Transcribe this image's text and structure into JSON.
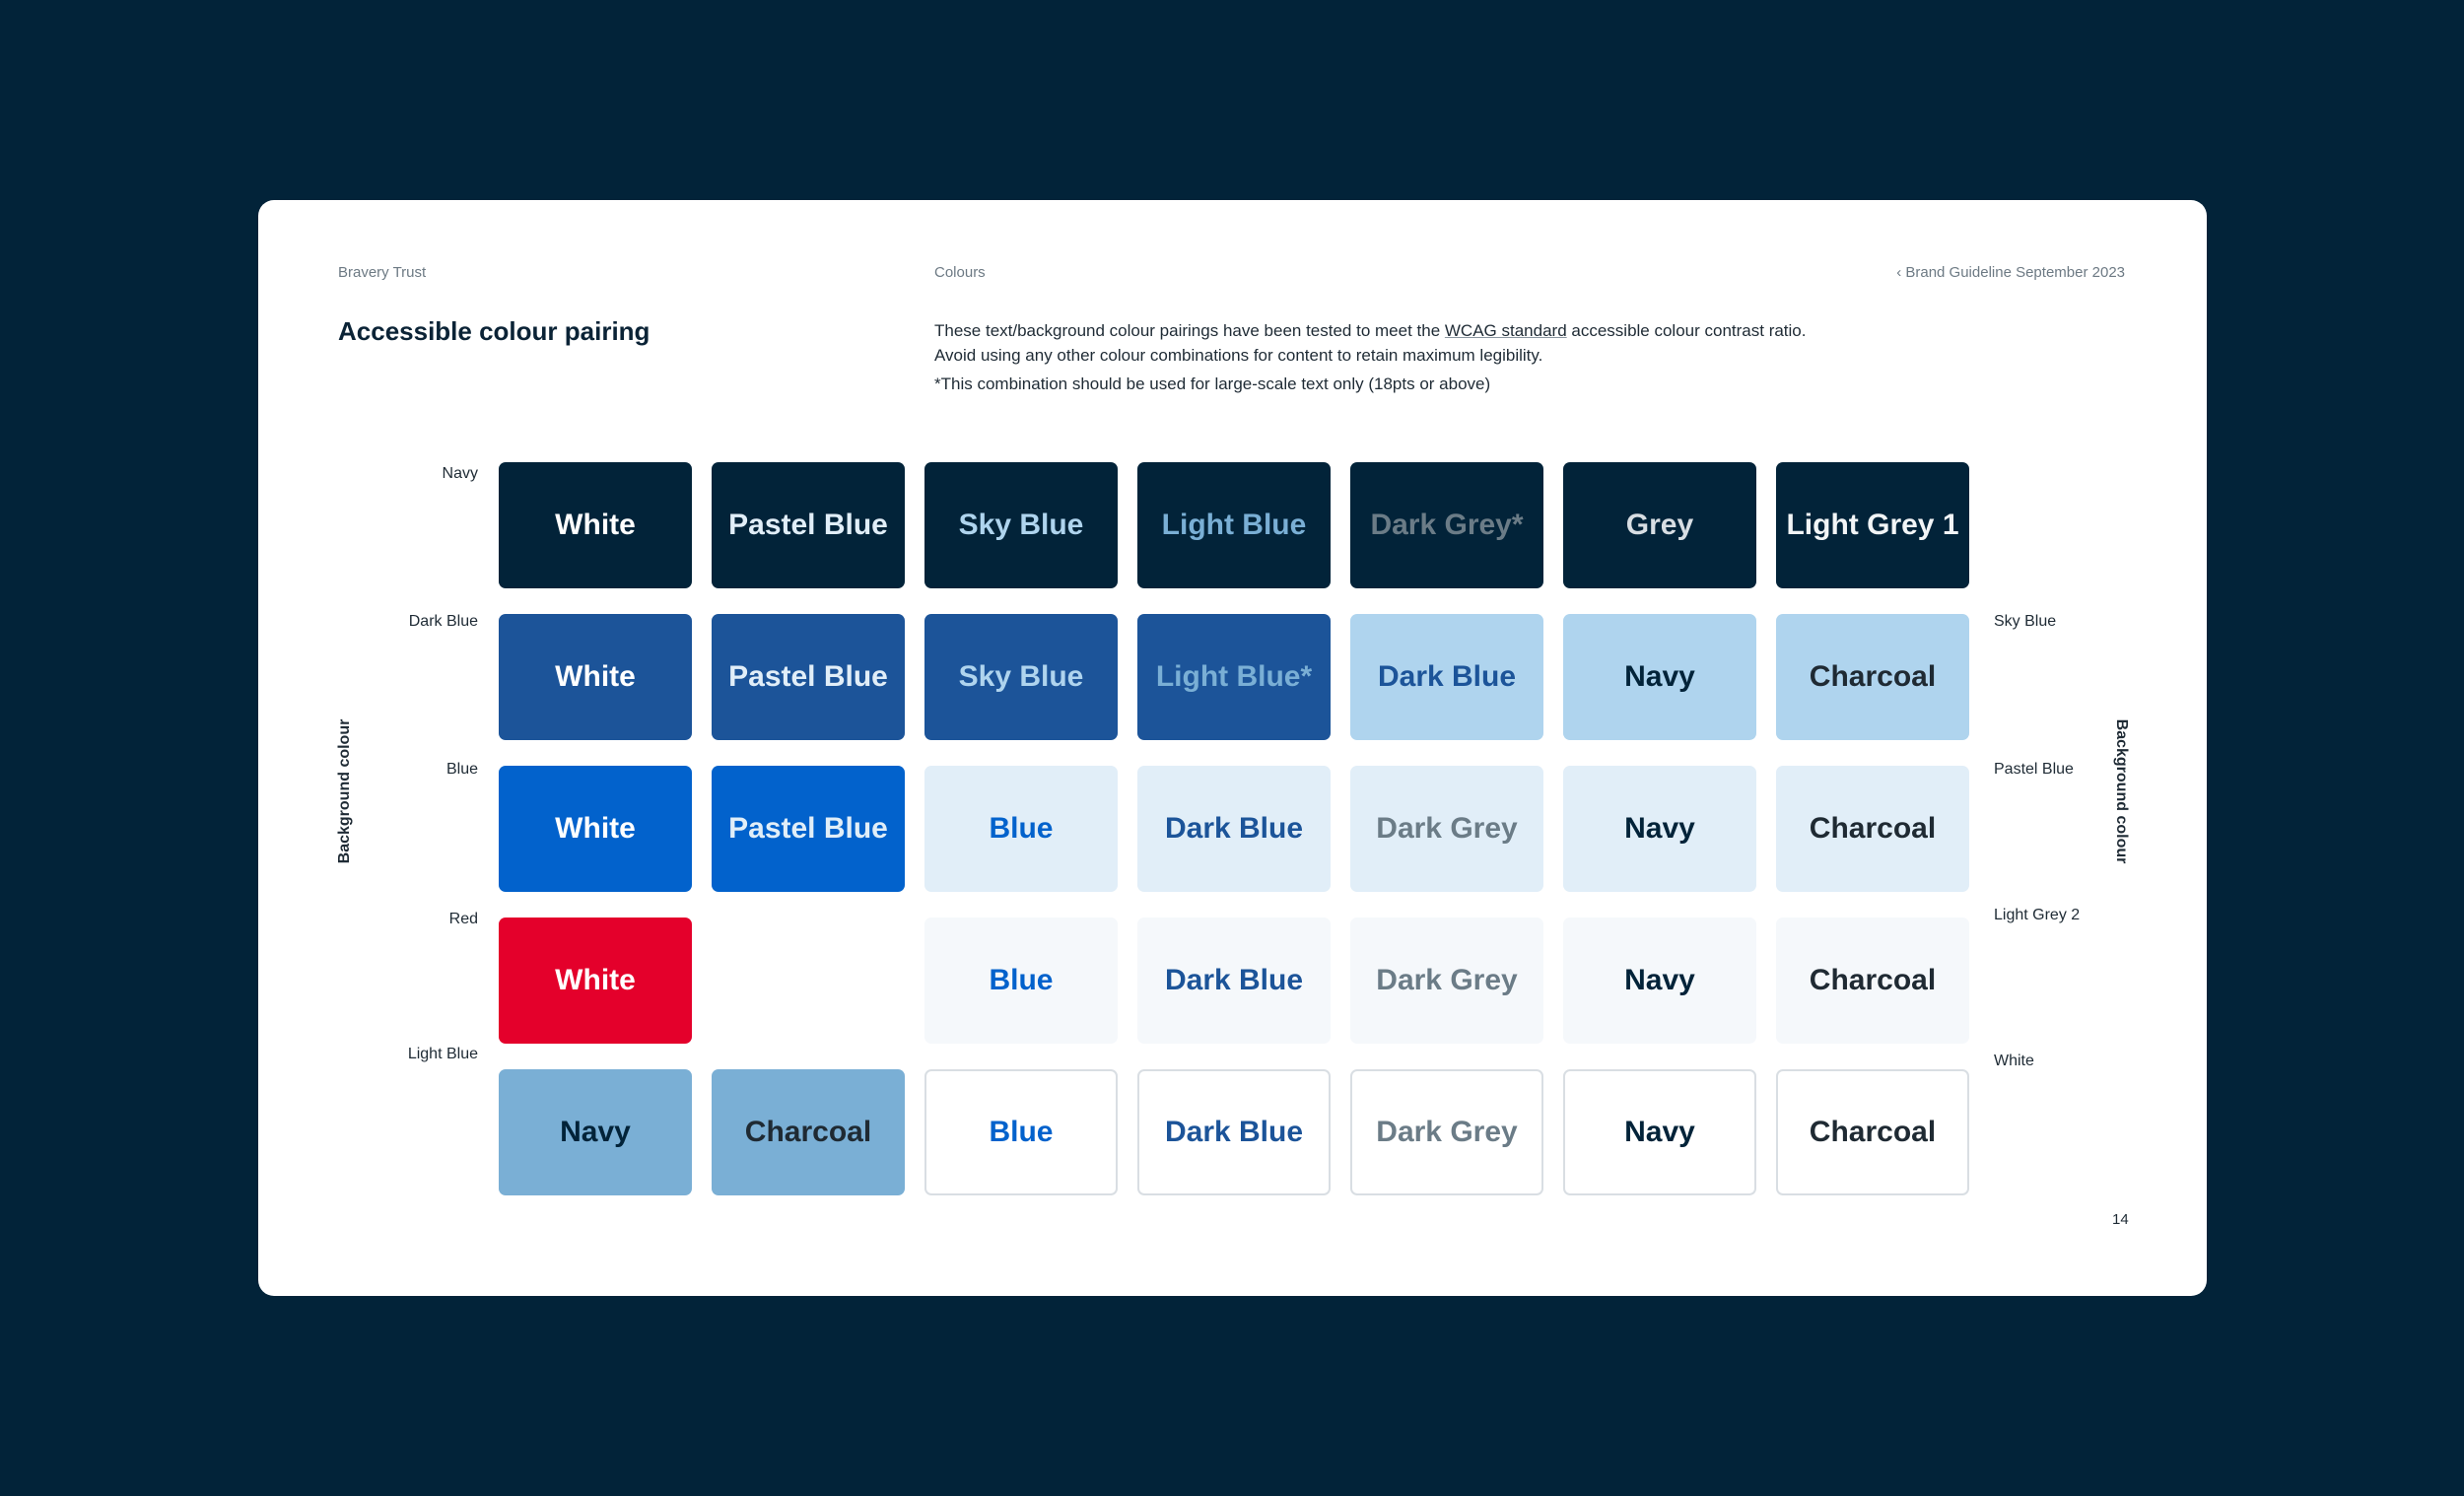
{
  "colors": {
    "backdrop": "#022339",
    "Navy": "#022339",
    "Dark Blue": "#1c5499",
    "Blue": "#0262cc",
    "Red": "#e4002b",
    "Light Blue": "#7aafd5",
    "Sky Blue": "#afd4ee",
    "Pastel Blue": "#e1eef8",
    "Light Grey 2": "#f5f8fb",
    "White": "#ffffff",
    "Charcoal": "#1f2a33",
    "Dark Grey": "#6b7c87",
    "Grey": "#d8dee3",
    "Light Grey 1": "#f2f5f7"
  },
  "header": {
    "brand": "Bravery Trust",
    "section": "Colours",
    "guide": "‹ Brand Guideline September 2023"
  },
  "title": "Accessible colour pairing",
  "description": {
    "line1_pre": "These text/background colour pairings have been tested to meet the ",
    "line1_link": "WCAG standard",
    "line1_post": " accessible colour contrast ratio.",
    "line2": "Avoid using any other colour combinations for content to retain maximum legibility.",
    "note": "*This combination should be used for large-scale text only (18pts or above)"
  },
  "axis": {
    "left": "Background colour",
    "right": "Background colour"
  },
  "left_rows": [
    "Navy",
    "Dark Blue",
    "Blue",
    "Red",
    "Light Blue"
  ],
  "right_rows": [
    "Sky Blue",
    "Pastel Blue",
    "Light Grey 2",
    "White"
  ],
  "left_tiles": [
    [
      {
        "text": "White",
        "bg": "Navy",
        "fg": "White"
      },
      {
        "text": "Pastel Blue",
        "bg": "Navy",
        "fg": "Pastel Blue"
      },
      {
        "text": "Sky Blue",
        "bg": "Navy",
        "fg": "Sky Blue"
      },
      {
        "text": "Light Blue",
        "bg": "Navy",
        "fg": "Light Blue"
      },
      {
        "text": "Dark Grey*",
        "bg": "Navy",
        "fg": "Dark Grey"
      },
      {
        "text": "Grey",
        "bg": "Navy",
        "fg": "Grey"
      },
      {
        "text": "Light Grey 1",
        "bg": "Navy",
        "fg": "Light Grey 1"
      }
    ],
    [
      {
        "text": "White",
        "bg": "Dark Blue",
        "fg": "White"
      },
      {
        "text": "Pastel Blue",
        "bg": "Dark Blue",
        "fg": "Pastel Blue"
      },
      {
        "text": "Sky Blue",
        "bg": "Dark Blue",
        "fg": "Sky Blue"
      },
      {
        "text": "Light Blue*",
        "bg": "Dark Blue",
        "fg": "Light Blue"
      }
    ],
    [
      {
        "text": "White",
        "bg": "Blue",
        "fg": "White"
      },
      {
        "text": "Pastel Blue",
        "bg": "Blue",
        "fg": "Pastel Blue"
      }
    ],
    [
      {
        "text": "White",
        "bg": "Red",
        "fg": "White"
      }
    ],
    [
      {
        "text": "Navy",
        "bg": "Light Blue",
        "fg": "Navy"
      },
      {
        "text": "Charcoal",
        "bg": "Light Blue",
        "fg": "Charcoal"
      }
    ]
  ],
  "right_tiles": [
    [
      {
        "text": "Dark Blue",
        "bg": "Sky Blue",
        "fg": "Dark Blue"
      },
      {
        "text": "Navy",
        "bg": "Sky Blue",
        "fg": "Navy"
      },
      {
        "text": "Charcoal",
        "bg": "Sky Blue",
        "fg": "Charcoal"
      }
    ],
    [
      {
        "text": "Blue",
        "bg": "Pastel Blue",
        "fg": "Blue"
      },
      {
        "text": "Dark Blue",
        "bg": "Pastel Blue",
        "fg": "Dark Blue"
      },
      {
        "text": "Dark Grey",
        "bg": "Pastel Blue",
        "fg": "Dark Grey"
      },
      {
        "text": "Navy",
        "bg": "Pastel Blue",
        "fg": "Navy"
      },
      {
        "text": "Charcoal",
        "bg": "Pastel Blue",
        "fg": "Charcoal"
      }
    ],
    [
      {
        "text": "Blue",
        "bg": "Light Grey 2",
        "fg": "Blue"
      },
      {
        "text": "Dark Blue",
        "bg": "Light Grey 2",
        "fg": "Dark Blue"
      },
      {
        "text": "Dark Grey",
        "bg": "Light Grey 2",
        "fg": "Dark Grey"
      },
      {
        "text": "Navy",
        "bg": "Light Grey 2",
        "fg": "Navy"
      },
      {
        "text": "Charcoal",
        "bg": "Light Grey 2",
        "fg": "Charcoal"
      }
    ],
    [
      {
        "text": "Blue",
        "bg": "White",
        "fg": "Blue"
      },
      {
        "text": "Dark Blue",
        "bg": "White",
        "fg": "Dark Blue"
      },
      {
        "text": "Dark Grey",
        "bg": "White",
        "fg": "Dark Grey"
      },
      {
        "text": "Navy",
        "bg": "White",
        "fg": "Navy"
      },
      {
        "text": "Charcoal",
        "bg": "White",
        "fg": "Charcoal"
      }
    ]
  ],
  "page_number": "14"
}
